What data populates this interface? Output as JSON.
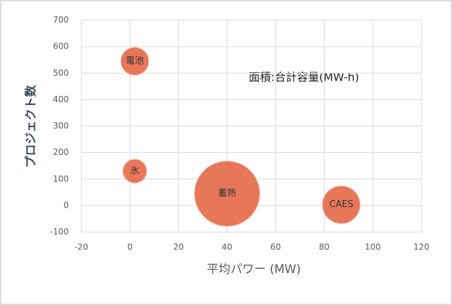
{
  "chart_data": {
    "type": "bubble",
    "annotation": "面積:合計容量(MW-h)",
    "xlabel": "平均パワー (MW)",
    "ylabel": "プロジェクト数",
    "categories": [
      "電池",
      "氷",
      "蓄熱",
      "CAES"
    ],
    "x": [
      2,
      2,
      40,
      87
    ],
    "values": [
      545,
      130,
      45,
      3
    ],
    "sizes": [
      400,
      290,
      2200,
      730
    ],
    "color": "#e8775a",
    "xlim": [
      -20,
      120
    ],
    "xticks": [
      -20,
      0,
      20,
      40,
      60,
      80,
      100,
      120
    ],
    "ylim": [
      -100,
      700
    ],
    "yticks": [
      -100,
      0,
      100,
      200,
      300,
      400,
      500,
      600,
      700
    ],
    "grid": true
  }
}
